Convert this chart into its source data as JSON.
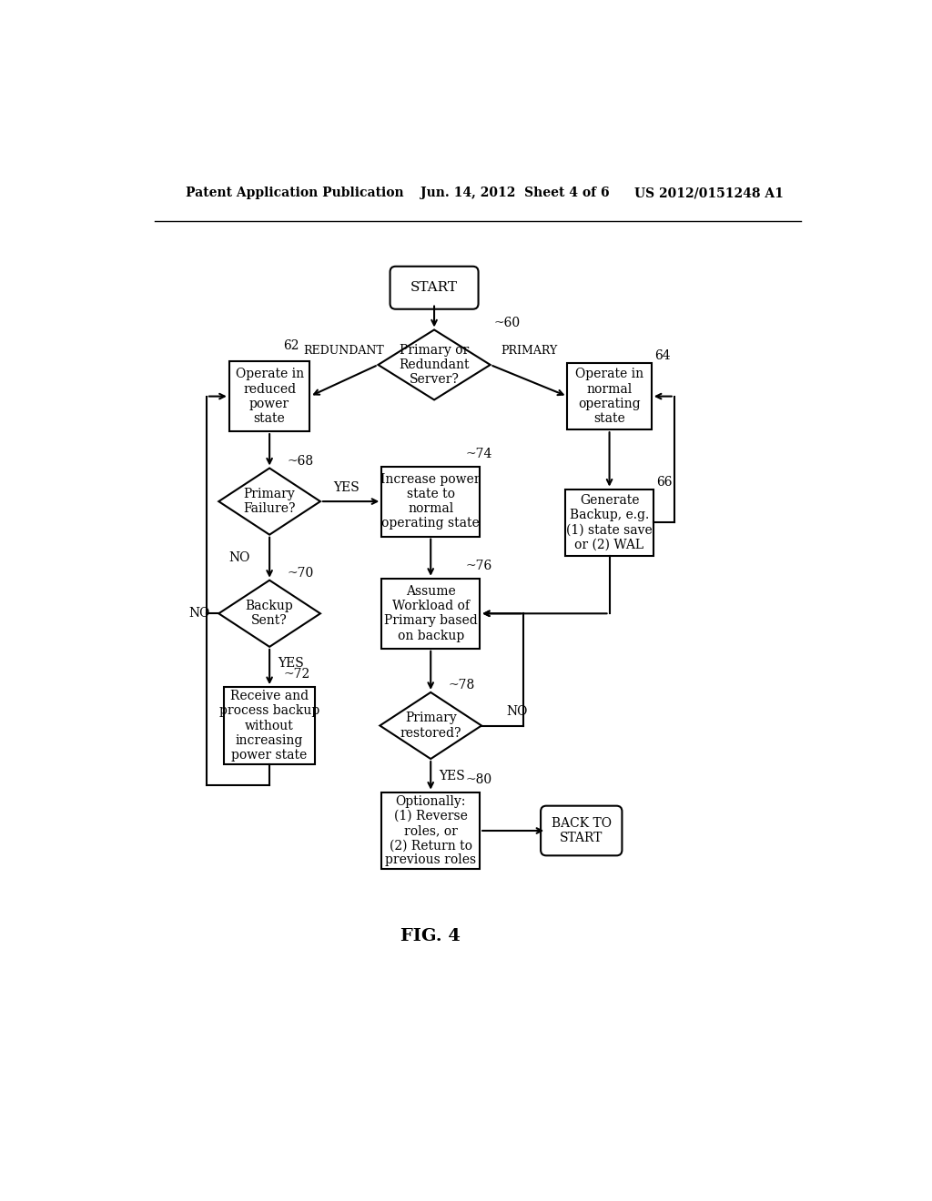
{
  "bg_color": "#ffffff",
  "header_left": "Patent Application Publication",
  "header_mid": "Jun. 14, 2012  Sheet 4 of 6",
  "header_right": "US 2012/0151248 A1",
  "fig_label": "FIG. 4"
}
